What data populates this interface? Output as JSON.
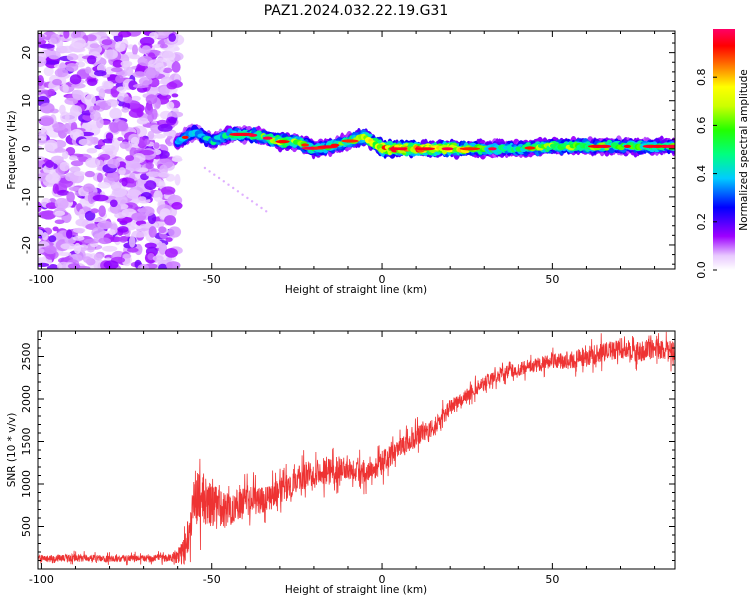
{
  "title": "PAZ1.2024.032.22.19.G31",
  "chart_data": [
    {
      "type": "heatmap",
      "xlabel": "Height of straight line (km)",
      "ylabel": "Frequency (Hz)",
      "xlim": [
        -101,
        86
      ],
      "ylim": [
        -25,
        24.5
      ],
      "xticks": [
        -100,
        -50,
        0,
        50
      ],
      "yticks": [
        -20,
        -10,
        0,
        10,
        20
      ],
      "colorbar": {
        "label": "Normalized spectral amplitude",
        "range": [
          0,
          1
        ],
        "ticks": [
          0.0,
          0.2,
          0.4,
          0.6,
          0.8
        ],
        "colormap": [
          "#ffffff",
          "#9d00ff",
          "#0000ff",
          "#00ffff",
          "#00ff00",
          "#ffff00",
          "#ff0000",
          "#ff0080"
        ]
      },
      "noise_region": {
        "x": [
          -101,
          -60
        ],
        "y": [
          -25,
          24.5
        ],
        "amplitude": 0.15
      },
      "ridge": {
        "x": [
          -60,
          -55,
          -50,
          -45,
          -40,
          -35,
          -30,
          -25,
          -20,
          -15,
          -10,
          -5,
          0,
          10,
          20,
          30,
          40,
          50,
          60,
          70,
          80,
          86
        ],
        "freq": [
          1.5,
          3.5,
          1.5,
          3.0,
          3.0,
          2.5,
          1.5,
          1.5,
          0.0,
          0.5,
          1.5,
          2.5,
          0.0,
          0.0,
          0.0,
          0.0,
          0.0,
          0.5,
          0.5,
          0.5,
          0.5,
          0.5
        ],
        "amplitude": [
          0.35,
          0.4,
          0.4,
          0.45,
          0.5,
          0.55,
          0.6,
          0.55,
          0.5,
          0.5,
          0.55,
          0.6,
          0.8,
          0.8,
          0.75,
          0.5,
          0.45,
          0.6,
          0.55,
          0.5,
          0.5,
          0.5
        ]
      },
      "streak": {
        "x": [
          -52,
          -34
        ],
        "freq": [
          -4,
          -13
        ]
      }
    },
    {
      "type": "line",
      "xlabel": "Height of straight line (km)",
      "ylabel": "SNR (10 * v/v)",
      "xlim": [
        -101,
        86
      ],
      "ylim": [
        0,
        2800
      ],
      "xticks": [
        -100,
        -50,
        0,
        50
      ],
      "yticks": [
        500,
        1000,
        1500,
        2000,
        2500
      ],
      "color": "#ee3333",
      "series": [
        {
          "x": [
            -101,
            -90,
            -80,
            -70,
            -62,
            -58,
            -55,
            -50,
            -45,
            -40,
            -35,
            -30,
            -25,
            -20,
            -15,
            -10,
            -5,
            0,
            5,
            10,
            15,
            20,
            25,
            30,
            35,
            40,
            45,
            50,
            55,
            60,
            65,
            70,
            75,
            80,
            86
          ],
          "y": [
            120,
            130,
            120,
            125,
            130,
            200,
            850,
            750,
            700,
            800,
            820,
            900,
            1050,
            1150,
            1150,
            1200,
            1150,
            1250,
            1400,
            1550,
            1650,
            1900,
            2050,
            2200,
            2300,
            2350,
            2400,
            2450,
            2450,
            2500,
            2550,
            2600,
            2550,
            2600,
            2550
          ],
          "noise": [
            50,
            55,
            50,
            50,
            55,
            200,
            420,
            320,
            250,
            230,
            200,
            200,
            200,
            200,
            200,
            180,
            180,
            180,
            160,
            150,
            140,
            120,
            100,
            100,
            100,
            100,
            100,
            120,
            130,
            150,
            150,
            150,
            150,
            150,
            150
          ]
        }
      ]
    }
  ]
}
